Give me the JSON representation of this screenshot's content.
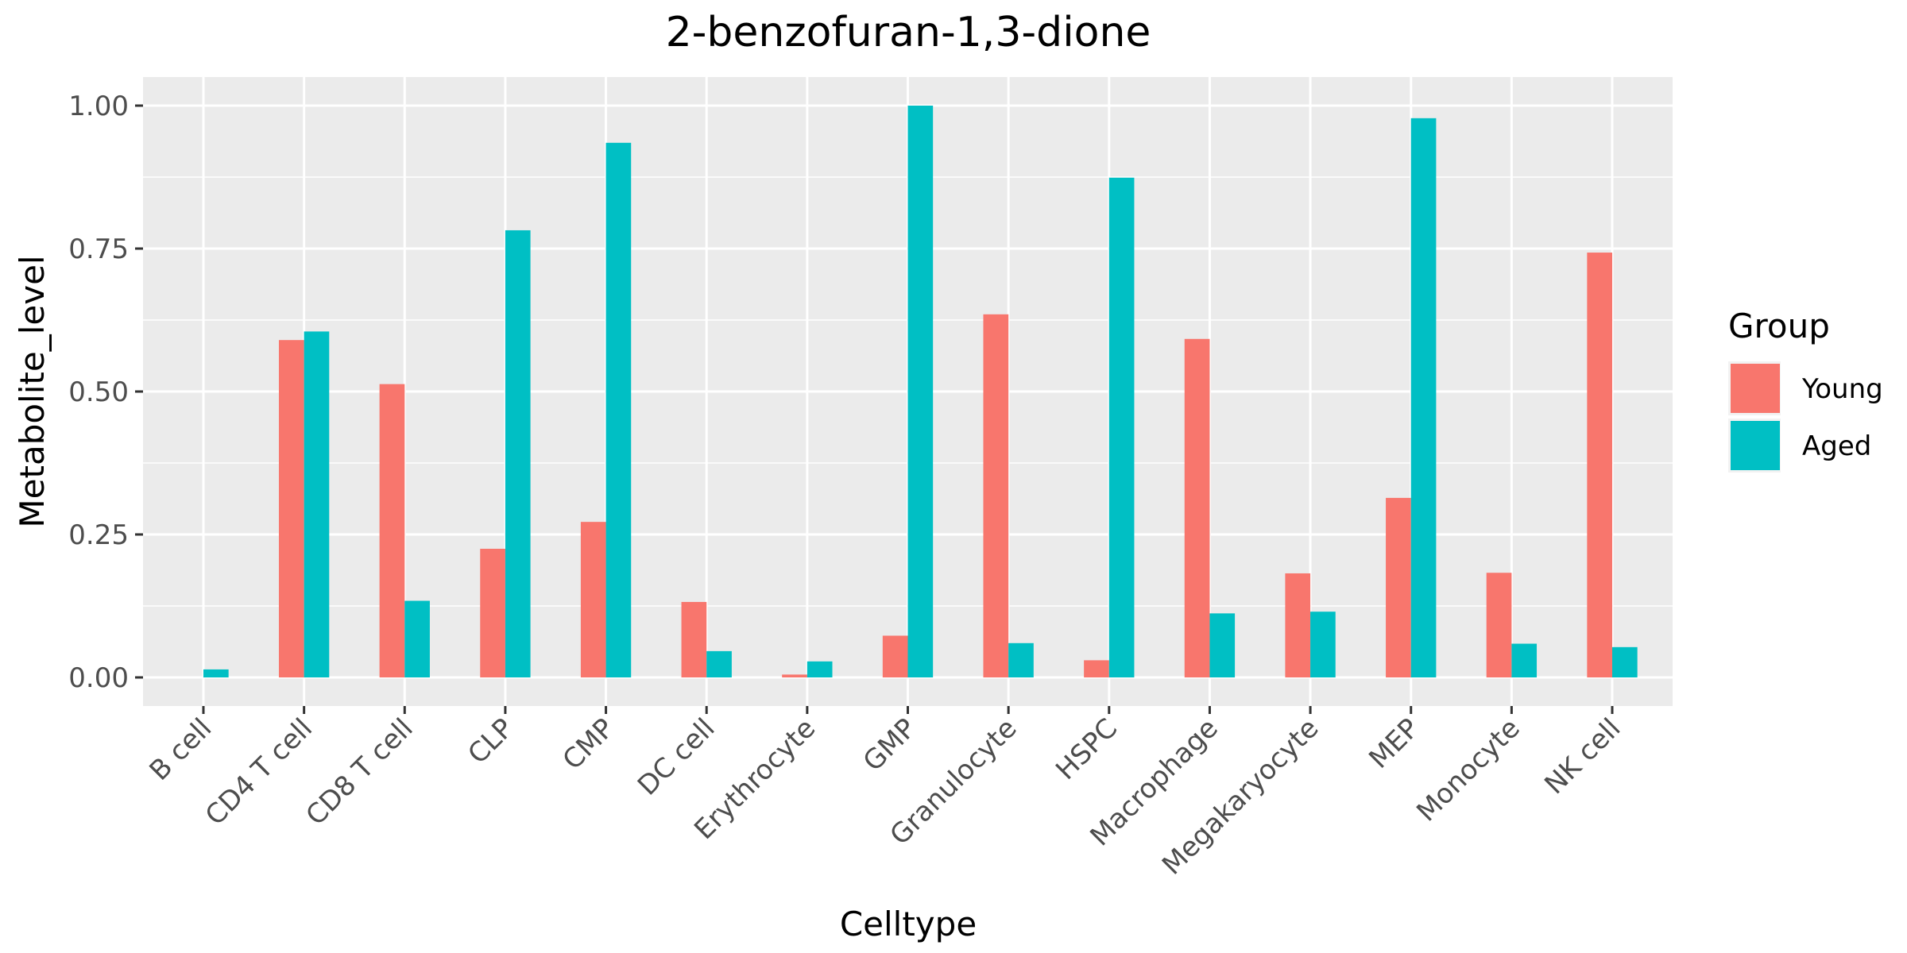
{
  "chart_data": {
    "type": "bar",
    "title": "2-benzofuran-1,3-dione",
    "xlabel": "Celltype",
    "ylabel": "Metabolite_level",
    "ylim": [
      -0.05,
      1.05
    ],
    "yticks": [
      0.0,
      0.25,
      0.5,
      0.75,
      1.0
    ],
    "ytick_labels": [
      "0.00",
      "0.25",
      "0.50",
      "0.75",
      "1.00"
    ],
    "grid": true,
    "legend_position": "right",
    "legend_title": "Group",
    "categories": [
      "B cell",
      "CD4 T cell",
      "CD8 T cell",
      "CLP",
      "CMP",
      "DC cell",
      "Erythrocyte",
      "GMP",
      "Granulocyte",
      "HSPC",
      "Macrophage",
      "Megakaryocyte",
      "MEP",
      "Monocyte",
      "NK cell"
    ],
    "series": [
      {
        "name": "Young",
        "color": "#F8766D",
        "values": [
          0.0,
          0.59,
          0.513,
          0.225,
          0.272,
          0.132,
          0.005,
          0.073,
          0.635,
          0.03,
          0.592,
          0.182,
          0.314,
          0.183,
          0.743
        ]
      },
      {
        "name": "Aged",
        "color": "#00BFC4",
        "values": [
          0.014,
          0.605,
          0.134,
          0.782,
          0.935,
          0.046,
          0.028,
          1.0,
          0.06,
          0.874,
          0.112,
          0.115,
          0.978,
          0.059,
          0.053
        ]
      }
    ],
    "panel_color": "#EBEBEB",
    "grid_color": "#FFFFFF"
  }
}
